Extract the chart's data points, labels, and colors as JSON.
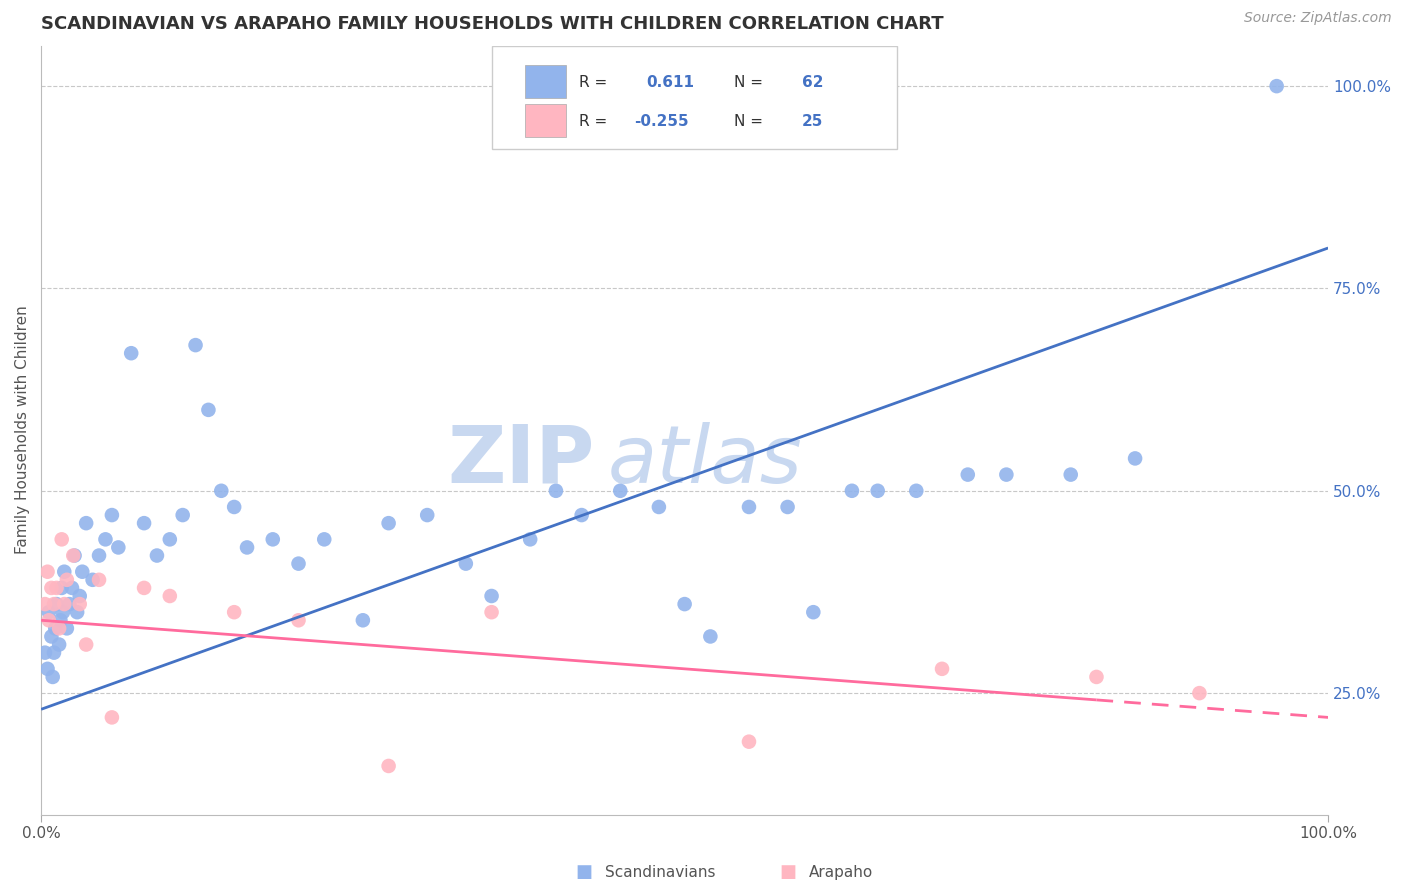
{
  "title": "SCANDINAVIAN VS ARAPAHO FAMILY HOUSEHOLDS WITH CHILDREN CORRELATION CHART",
  "source": "Source: ZipAtlas.com",
  "ylabel": "Family Households with Children",
  "xlim": [
    0,
    100
  ],
  "ylim": [
    10,
    105
  ],
  "x_tick_labels": [
    "0.0%",
    "100.0%"
  ],
  "x_tick_positions": [
    0,
    100
  ],
  "y_tick_labels_right": [
    "25.0%",
    "50.0%",
    "75.0%",
    "100.0%"
  ],
  "y_tick_positions_right": [
    25,
    50,
    75,
    100
  ],
  "legend_label1": "Scandinavians",
  "legend_label2": "Arapaho",
  "blue_line_color": "#4472C4",
  "pink_line_color": "#FF6B9D",
  "blue_dot_color": "#92B4EC",
  "pink_dot_color": "#FFB6C1",
  "watermark_color": "#C8D8F0",
  "background_color": "#FFFFFF",
  "grid_color": "#C8C8C8",
  "title_fontsize": 13,
  "axis_label_fontsize": 11,
  "tick_fontsize": 11,
  "source_fontsize": 10,
  "scatter_blue": {
    "x": [
      0.3,
      0.5,
      0.6,
      0.8,
      0.9,
      1.0,
      1.1,
      1.2,
      1.4,
      1.5,
      1.6,
      1.7,
      1.8,
      2.0,
      2.2,
      2.4,
      2.6,
      2.8,
      3.0,
      3.2,
      3.5,
      4.0,
      4.5,
      5.0,
      5.5,
      6.0,
      7.0,
      8.0,
      9.0,
      10.0,
      11.0,
      12.0,
      13.0,
      14.0,
      15.0,
      16.0,
      18.0,
      20.0,
      22.0,
      25.0,
      27.0,
      30.0,
      33.0,
      35.0,
      38.0,
      40.0,
      42.0,
      45.0,
      48.0,
      50.0,
      52.0,
      55.0,
      58.0,
      60.0,
      63.0,
      65.0,
      68.0,
      72.0,
      75.0,
      80.0,
      85.0,
      96.0
    ],
    "y": [
      30,
      28,
      35,
      32,
      27,
      30,
      33,
      36,
      31,
      34,
      38,
      35,
      40,
      33,
      36,
      38,
      42,
      35,
      37,
      40,
      46,
      39,
      42,
      44,
      47,
      43,
      67,
      46,
      42,
      44,
      47,
      68,
      60,
      50,
      48,
      43,
      44,
      41,
      44,
      34,
      46,
      47,
      41,
      37,
      44,
      50,
      47,
      50,
      48,
      36,
      32,
      48,
      48,
      35,
      50,
      50,
      50,
      52,
      52,
      52,
      54,
      100
    ]
  },
  "scatter_pink": {
    "x": [
      0.3,
      0.5,
      0.6,
      0.8,
      1.0,
      1.2,
      1.4,
      1.6,
      1.8,
      2.0,
      2.5,
      3.0,
      3.5,
      4.5,
      5.5,
      8.0,
      10.0,
      15.0,
      20.0,
      27.0,
      35.0,
      55.0,
      70.0,
      82.0,
      90.0
    ],
    "y": [
      36,
      40,
      34,
      38,
      36,
      38,
      33,
      44,
      36,
      39,
      42,
      36,
      31,
      39,
      22,
      38,
      37,
      35,
      34,
      16,
      35,
      19,
      28,
      27,
      25
    ]
  },
  "blue_line_x": [
    0,
    100
  ],
  "blue_line_y": [
    23,
    80
  ],
  "pink_line_x": [
    0,
    100
  ],
  "pink_line_y": [
    34,
    22
  ]
}
